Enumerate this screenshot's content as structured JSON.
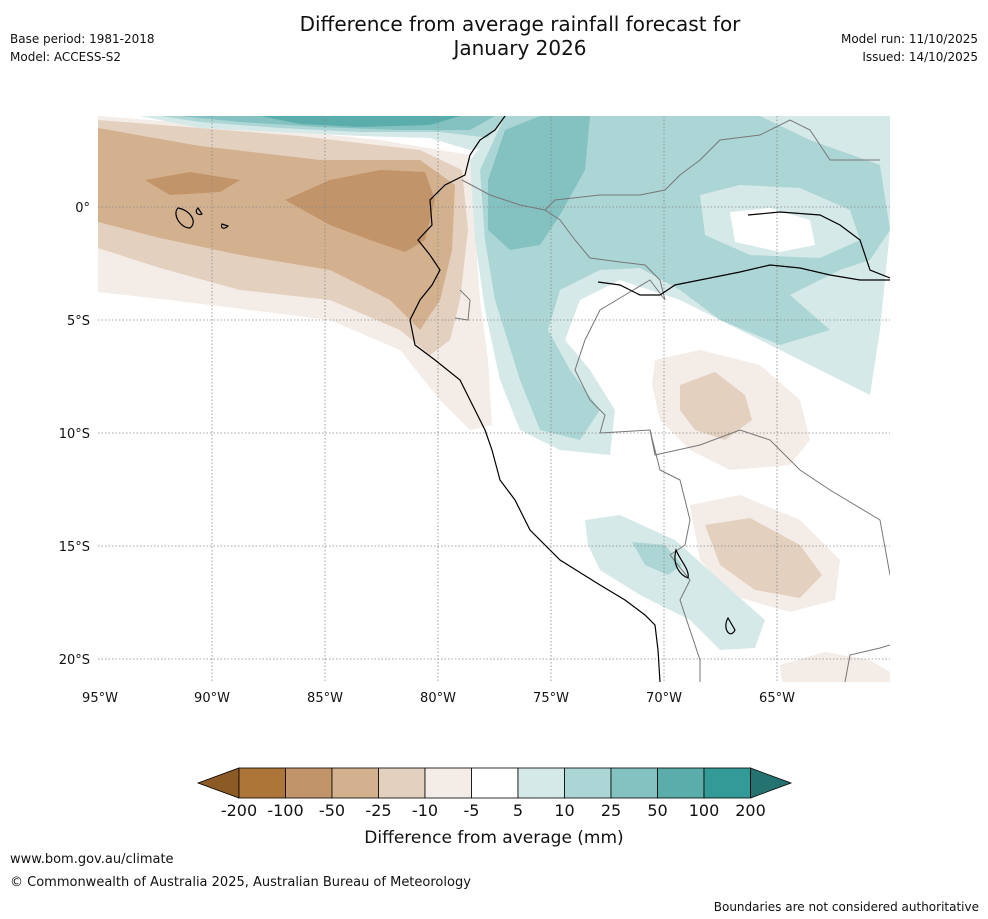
{
  "header": {
    "title_line1": "Difference from average rainfall forecast for",
    "title_line2": "January 2026",
    "base_period": "Base period: 1981-2018",
    "model": "Model: ACCESS-S2",
    "model_run": "Model run: 11/10/2025",
    "issued": "Issued: 14/10/2025"
  },
  "map": {
    "lat_labels": [
      "0°",
      "5°S",
      "10°S",
      "15°S",
      "20°S"
    ],
    "lon_labels": [
      "95°W",
      "90°W",
      "85°W",
      "80°W",
      "75°W",
      "70°W",
      "65°W"
    ],
    "colors": {
      "brown_200": "#8c5a24",
      "brown_100": "#ad7538",
      "brown_50": "#c29469",
      "brown_25": "#d3b08e",
      "brown_10": "#e4d0bf",
      "brown_5": "#f4ece7",
      "white": "#ffffff",
      "teal_5": "#d5e9e8",
      "teal_10": "#acd6d5",
      "teal_25": "#84c2c1",
      "teal_50": "#5aadab",
      "teal_100": "#349a97",
      "teal_200": "#257370"
    }
  },
  "colorbar": {
    "ticks": [
      "-200",
      "-100",
      "-50",
      "-25",
      "-10",
      "-5",
      "5",
      "10",
      "25",
      "50",
      "100",
      "200"
    ],
    "label": "Difference from average (mm)"
  },
  "footer": {
    "website": "www.bom.gov.au/climate",
    "copyright": "© Commonwealth of Australia 2025, Australian Bureau of Meteorology",
    "disclaimer": "Boundaries are not considered authoritative"
  }
}
